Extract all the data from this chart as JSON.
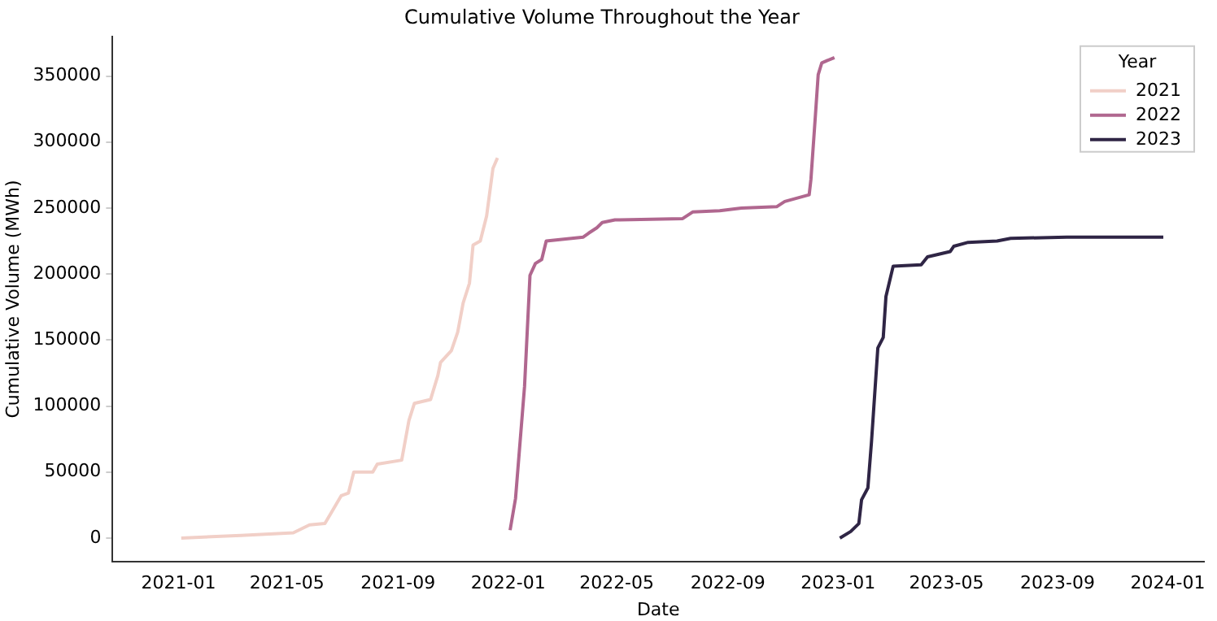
{
  "chart_data": {
    "type": "line",
    "title": "Cumulative Volume Throughout the Year",
    "xlabel": "Date",
    "ylabel": "Cumulative Volume (MWh)",
    "legend_title": "Year",
    "legend": "top right",
    "grid": false,
    "marker": "none",
    "line_style": "solid",
    "xlim": [
      "2020-10-20",
      "2024-02-10"
    ],
    "xticks": [
      "2021-01",
      "2021-05",
      "2021-09",
      "2022-01",
      "2022-05",
      "2022-09",
      "2023-01",
      "2023-05",
      "2023-09",
      "2024-01"
    ],
    "ylim": [
      -18000,
      380000
    ],
    "yticks": [
      0,
      50000,
      100000,
      150000,
      200000,
      250000,
      300000,
      350000
    ],
    "series": [
      {
        "name": "2021",
        "color": "#f1cfc7",
        "x": [
          "2021-01-04",
          "2021-03-11",
          "2021-05-08",
          "2021-05-26",
          "2021-06-12",
          "2021-06-18",
          "2021-06-30",
          "2021-07-08",
          "2021-07-14",
          "2021-08-04",
          "2021-08-09",
          "2021-09-05",
          "2021-09-13",
          "2021-09-19",
          "2021-10-07",
          "2021-10-15",
          "2021-10-18",
          "2021-10-30",
          "2021-11-06",
          "2021-11-12",
          "2021-11-19",
          "2021-11-23",
          "2021-12-01",
          "2021-12-08",
          "2021-12-15",
          "2021-12-20"
        ],
        "values": [
          0,
          2000,
          4000,
          10000,
          11000,
          18000,
          32000,
          34000,
          50000,
          50000,
          56000,
          59000,
          89000,
          102000,
          105000,
          123000,
          133000,
          142000,
          156000,
          178000,
          193000,
          222000,
          225000,
          244000,
          280000,
          288000
        ]
      },
      {
        "name": "2022",
        "color": "#b0678f",
        "x": [
          "2022-01-03",
          "2022-01-09",
          "2022-01-19",
          "2022-01-25",
          "2022-01-31",
          "2022-02-07",
          "2022-02-12",
          "2022-03-25",
          "2022-03-31",
          "2022-04-09",
          "2022-04-15",
          "2022-04-29",
          "2022-07-13",
          "2022-07-24",
          "2022-08-23",
          "2022-09-16",
          "2022-10-25",
          "2022-11-03",
          "2022-11-30",
          "2022-12-02",
          "2022-12-07",
          "2022-12-10",
          "2022-12-14",
          "2022-12-28"
        ],
        "values": [
          6000,
          30000,
          115000,
          199000,
          208000,
          211000,
          225000,
          228000,
          231000,
          235000,
          239000,
          241000,
          242000,
          247000,
          248000,
          250000,
          251000,
          255000,
          260000,
          272000,
          321000,
          351000,
          360000,
          364000
        ]
      },
      {
        "name": "2023",
        "color": "#2f2545",
        "x": [
          "2023-01-03",
          "2023-01-15",
          "2023-01-24",
          "2023-01-27",
          "2023-02-03",
          "2023-02-07",
          "2023-02-14",
          "2023-02-20",
          "2023-02-23",
          "2023-03-03",
          "2023-04-03",
          "2023-04-10",
          "2023-05-05",
          "2023-05-09",
          "2023-05-25",
          "2023-06-26",
          "2023-07-11",
          "2023-09-11",
          "2023-11-08",
          "2023-12-27"
        ],
        "values": [
          0,
          5000,
          11000,
          29000,
          38000,
          73000,
          144000,
          152000,
          183000,
          206000,
          207000,
          213000,
          217000,
          221000,
          224000,
          225000,
          227000,
          228000,
          228000,
          228000
        ]
      }
    ]
  }
}
